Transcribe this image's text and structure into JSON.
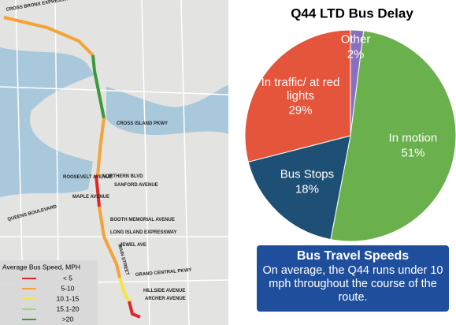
{
  "chart_data": {
    "type": "pie",
    "title": "Q44 LTD Bus Delay",
    "categories": [
      "Other",
      "In motion",
      "Bus Stops",
      "In traffic/ at red lights"
    ],
    "values": [
      2,
      51,
      18,
      29
    ],
    "value_labels": [
      "2%",
      "51%",
      "18%",
      "29%"
    ],
    "colors": [
      "#8a6fbf",
      "#6ab04c",
      "#1e4f74",
      "#e4553b"
    ]
  },
  "info_box": {
    "title": "Bus Travel Speeds",
    "text": "On average, the Q44 runs under 10 mph throughout the course of the route."
  },
  "map": {
    "labels": [
      "CROSS BRONX EXPRESSWAY",
      "CROSS ISLAND PKWY",
      "NORTHERN BLVD",
      "ROOSEVELT AVENUE",
      "SANFORD AVENUE",
      "MAPLE AVENUE",
      "BOOTH MEMORIAL AVENUE",
      "LONG ISLAND EXPRESSWAY",
      "JEWEL AVE",
      "QUEENS BOULEVARD",
      "MAIN STREET",
      "GRAND CENTRAL PKWY",
      "HILLSIDE AVENUE",
      "ARCHER AVENUE"
    ],
    "legend": {
      "title": "Average Bus Speed, MPH",
      "items": [
        {
          "label": "< 5",
          "color": "#e0262a"
        },
        {
          "label": "5-10",
          "color": "#f5a236"
        },
        {
          "label": "10.1-15",
          "color": "#f7e441"
        },
        {
          "label": "15.1-20",
          "color": "#a6d46a"
        },
        {
          "label": ">20",
          "color": "#3a9a3c"
        }
      ]
    }
  }
}
